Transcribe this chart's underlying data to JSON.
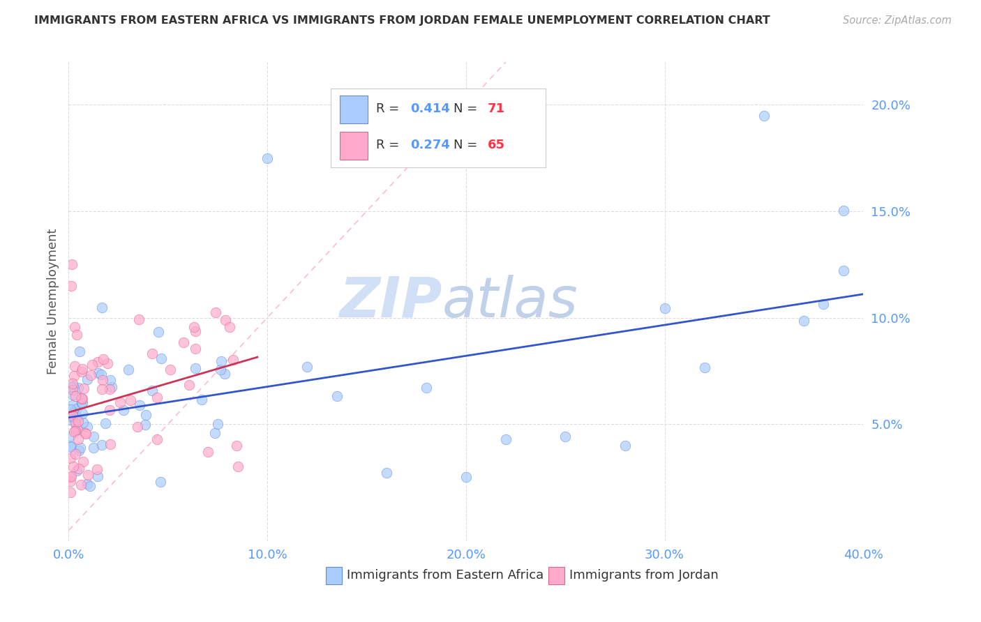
{
  "title": "IMMIGRANTS FROM EASTERN AFRICA VS IMMIGRANTS FROM JORDAN FEMALE UNEMPLOYMENT CORRELATION CHART",
  "source": "Source: ZipAtlas.com",
  "xlabel_blue": "Immigrants from Eastern Africa",
  "xlabel_pink": "Immigrants from Jordan",
  "ylabel": "Female Unemployment",
  "xmin": 0.0,
  "xmax": 0.4,
  "ymin": -0.005,
  "ymax": 0.22,
  "yticks": [
    0.05,
    0.1,
    0.15,
    0.2
  ],
  "ytick_labels": [
    "5.0%",
    "10.0%",
    "15.0%",
    "20.0%"
  ],
  "xticks": [
    0.0,
    0.1,
    0.2,
    0.3,
    0.4
  ],
  "xtick_labels": [
    "0.0%",
    "10.0%",
    "20.0%",
    "30.0%",
    "40.0%"
  ],
  "blue_R": 0.414,
  "blue_N": 71,
  "pink_R": 0.274,
  "pink_N": 65,
  "blue_color": "#AACCFF",
  "pink_color": "#FFAACC",
  "blue_edge_color": "#6688DD",
  "pink_edge_color": "#DD6688",
  "blue_line_color": "#3355CC",
  "pink_line_color": "#CC3355",
  "ref_line_color": "#FFBBCC",
  "title_color": "#333333",
  "tick_color": "#5599FF",
  "note_blue_R_color": "#5599FF",
  "note_blue_N_color": "#FF3344",
  "note_pink_R_color": "#5599FF",
  "note_pink_N_color": "#FF3344"
}
